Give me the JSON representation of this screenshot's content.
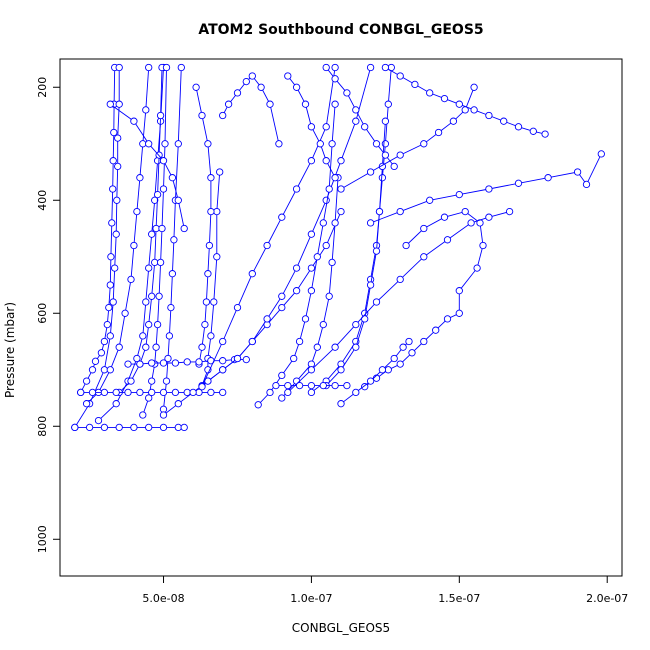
{
  "chart_data": {
    "type": "scatter",
    "title": "ATOM2 Southbound CONBGL_GEOS5",
    "xlabel": "CONBGL_GEOS5",
    "ylabel": "Pressure (mbar)",
    "xlim": [
      1.5e-08,
      2.05e-07
    ],
    "ylim": [
      1065,
      150
    ],
    "y_reversed": true,
    "xticks": [
      5e-08,
      1e-07,
      1.5e-07,
      2e-07
    ],
    "xtick_labels": [
      "5.0e-08",
      "1.0e-07",
      "1.5e-07",
      "2.0e-07"
    ],
    "yticks": [
      200,
      400,
      600,
      800,
      1000
    ],
    "ytick_labels": [
      "200",
      "400",
      "600",
      "800",
      "1000"
    ],
    "color": "#0000ff",
    "marker": "open-circle",
    "line": "connected",
    "grid": false,
    "series": [
      {
        "x": [
          2.2e-08,
          2.4e-08,
          2.6e-08,
          2.7e-08,
          2.9e-08,
          3e-08,
          3.1e-08,
          3.15e-08,
          3.2e-08,
          3.22e-08,
          3.25e-08,
          3.28e-08,
          3.3e-08,
          3.32e-08,
          3.33e-08,
          3.35e-08
        ],
        "y": [
          740,
          720,
          700,
          685,
          670,
          650,
          620,
          590,
          550,
          500,
          440,
          380,
          330,
          280,
          230,
          165
        ]
      },
      {
        "x": [
          2e-08,
          2.5e-08,
          3e-08,
          3.2e-08,
          3.3e-08,
          3.35e-08,
          3.4e-08,
          3.42e-08,
          3.45e-08,
          3.45e-08,
          3.5e-08,
          3.5e-08
        ],
        "y": [
          802,
          760,
          700,
          640,
          580,
          520,
          460,
          400,
          340,
          290,
          230,
          165
        ]
      },
      {
        "x": [
          2.4e-08,
          2.8e-08,
          3.2e-08,
          3.5e-08,
          3.7e-08,
          3.9e-08,
          4e-08,
          4.1e-08,
          4.2e-08,
          4.3e-08,
          4.4e-08,
          4.5e-08
        ],
        "y": [
          760,
          740,
          700,
          660,
          600,
          540,
          480,
          420,
          360,
          300,
          240,
          165
        ]
      },
      {
        "x": [
          2.8e-08,
          3.4e-08,
          3.8e-08,
          4.1e-08,
          4.3e-08,
          4.4e-08,
          4.5e-08,
          4.6e-08,
          4.7e-08,
          4.8e-08,
          4.9e-08,
          5e-08
        ],
        "y": [
          790,
          760,
          720,
          680,
          640,
          580,
          520,
          460,
          400,
          330,
          260,
          165
        ]
      },
      {
        "x": [
          3.5e-08,
          3.9e-08,
          4.2e-08,
          4.4e-08,
          4.5e-08,
          4.6e-08,
          4.7e-08,
          4.75e-08,
          4.8e-08,
          4.85e-08,
          4.9e-08,
          4.95e-08
        ],
        "y": [
          740,
          720,
          690,
          660,
          620,
          570,
          510,
          450,
          390,
          320,
          250,
          165
        ]
      },
      {
        "x": [
          4.3e-08,
          4.5e-08,
          4.6e-08,
          4.7e-08,
          4.75e-08,
          4.8e-08,
          4.85e-08,
          4.9e-08,
          4.95e-08,
          5e-08,
          5.05e-08,
          5.1e-08
        ],
        "y": [
          780,
          750,
          720,
          690,
          660,
          620,
          570,
          510,
          450,
          380,
          300,
          165
        ]
      },
      {
        "x": [
          5e-08,
          5.1e-08,
          5.15e-08,
          5.2e-08,
          5.25e-08,
          5.3e-08,
          5.35e-08,
          5.4e-08,
          5.5e-08,
          5.6e-08
        ],
        "y": [
          770,
          720,
          680,
          640,
          590,
          530,
          470,
          400,
          300,
          165
        ]
      },
      {
        "x": [
          6.3e-08,
          6.5e-08,
          6.5e-08,
          6.6e-08,
          6.7e-08,
          6.8e-08,
          6.8e-08,
          6.9e-08
        ],
        "y": [
          728,
          700,
          680,
          640,
          580,
          500,
          420,
          350
        ]
      },
      {
        "x": [
          6.2e-08,
          6.3e-08,
          6.4e-08,
          6.45e-08,
          6.5e-08,
          6.55e-08,
          6.6e-08,
          6.6e-08,
          6.5e-08,
          6.3e-08,
          6.1e-08
        ],
        "y": [
          690,
          660,
          620,
          580,
          530,
          480,
          420,
          360,
          300,
          250,
          200
        ]
      },
      {
        "x": [
          3.2e-08,
          4e-08,
          4.5e-08,
          5e-08,
          5.3e-08,
          5.5e-08,
          5.7e-08
        ],
        "y": [
          230,
          260,
          300,
          330,
          360,
          400,
          450
        ]
      },
      {
        "x": [
          2e-08,
          2.5e-08,
          3e-08,
          3.5e-08,
          4e-08,
          4.5e-08,
          5e-08,
          5.5e-08,
          5.7e-08
        ],
        "y": [
          802,
          802,
          802,
          802,
          802,
          802,
          802,
          802,
          802
        ]
      },
      {
        "x": [
          2.2e-08,
          2.6e-08,
          3e-08,
          3.4e-08,
          3.8e-08,
          4.2e-08,
          4.6e-08,
          5e-08,
          5.4e-08,
          5.8e-08,
          6.2e-08,
          6.6e-08,
          7e-08
        ],
        "y": [
          740,
          740,
          740,
          740,
          740,
          740,
          740,
          740,
          740,
          740,
          740,
          740,
          740
        ]
      },
      {
        "x": [
          3.8e-08,
          4.2e-08,
          4.6e-08,
          5e-08,
          5.4e-08,
          5.8e-08,
          6.2e-08,
          6.6e-08,
          7e-08,
          7.4e-08,
          7.8e-08
        ],
        "y": [
          690,
          690,
          688,
          688,
          688,
          686,
          686,
          684,
          684,
          682,
          682
        ]
      },
      {
        "x": [
          5e-08,
          5.5e-08,
          6e-08,
          6.5e-08,
          7e-08,
          7.5e-08,
          8e-08,
          8.5e-08,
          9e-08,
          9.5e-08,
          1e-07,
          1.05e-07,
          1.1e-07
        ],
        "y": [
          780,
          760,
          740,
          720,
          700,
          680,
          650,
          620,
          590,
          560,
          520,
          480,
          420
        ]
      },
      {
        "x": [
          6.5e-08,
          7e-08,
          7.5e-08,
          8e-08,
          8.5e-08,
          9e-08,
          9.5e-08,
          1e-07,
          1.05e-07,
          1.1e-07,
          1.15e-07,
          1.2e-07
        ],
        "y": [
          720,
          700,
          680,
          650,
          610,
          570,
          520,
          460,
          400,
          330,
          260,
          165
        ]
      },
      {
        "x": [
          8.2e-08,
          8.6e-08,
          9e-08,
          9.4e-08,
          9.6e-08,
          9.8e-08,
          1e-07,
          1.02e-07,
          1.04e-07,
          1.06e-07,
          1.07e-07,
          1.08e-07
        ],
        "y": [
          762,
          740,
          710,
          680,
          650,
          610,
          560,
          500,
          440,
          380,
          300,
          230
        ]
      },
      {
        "x": [
          9e-08,
          9.5e-08,
          1e-07,
          1.02e-07,
          1.04e-07,
          1.06e-07,
          1.07e-07,
          1.08e-07,
          1.09e-07
        ],
        "y": [
          750,
          720,
          690,
          660,
          620,
          570,
          510,
          440,
          360
        ]
      },
      {
        "x": [
          1e-07,
          1.05e-07,
          1.1e-07,
          1.15e-07,
          1.18e-07,
          1.2e-07,
          1.22e-07,
          1.23e-07,
          1.24e-07,
          1.25e-07,
          1.26e-07,
          1.27e-07
        ],
        "y": [
          740,
          720,
          690,
          650,
          600,
          540,
          480,
          420,
          360,
          300,
          230,
          165
        ]
      },
      {
        "x": [
          1.05e-07,
          1.1e-07,
          1.15e-07,
          1.18e-07,
          1.2e-07,
          1.22e-07,
          1.23e-07,
          1.24e-07,
          1.25e-07
        ],
        "y": [
          728,
          700,
          660,
          610,
          550,
          490,
          420,
          340,
          260
        ]
      },
      {
        "x": [
          1.18e-07,
          1.22e-07,
          1.26e-07,
          1.3e-07,
          1.34e-07,
          1.38e-07,
          1.42e-07,
          1.46e-07,
          1.5e-07,
          1.5e-07,
          1.56e-07,
          1.58e-07,
          1.57e-07,
          1.52e-07,
          1.45e-07,
          1.38e-07,
          1.32e-07
        ],
        "y": [
          730,
          715,
          700,
          690,
          670,
          650,
          630,
          610,
          600,
          560,
          520,
          480,
          440,
          420,
          430,
          450,
          480
        ]
      },
      {
        "x": [
          9.2e-08,
          1e-07,
          1.08e-07,
          1.15e-07,
          1.22e-07,
          1.3e-07,
          1.38e-07,
          1.46e-07,
          1.54e-07,
          1.6e-07,
          1.67e-07
        ],
        "y": [
          740,
          700,
          660,
          620,
          580,
          540,
          500,
          470,
          440,
          430,
          420
        ]
      },
      {
        "x": [
          1.2e-07,
          1.3e-07,
          1.4e-07,
          1.5e-07,
          1.6e-07,
          1.7e-07,
          1.8e-07,
          1.9e-07,
          1.93e-07,
          1.98e-07
        ],
        "y": [
          440,
          420,
          400,
          390,
          380,
          370,
          360,
          350,
          372,
          318
        ]
      },
      {
        "x": [
          1.1e-07,
          1.2e-07,
          1.3e-07,
          1.38e-07,
          1.43e-07,
          1.48e-07,
          1.52e-07,
          1.55e-07
        ],
        "y": [
          380,
          350,
          320,
          300,
          280,
          260,
          240,
          200
        ]
      },
      {
        "x": [
          1.25e-07,
          1.3e-07,
          1.35e-07,
          1.4e-07,
          1.45e-07,
          1.5e-07,
          1.55e-07,
          1.6e-07,
          1.65e-07,
          1.7e-07,
          1.75e-07,
          1.79e-07
        ],
        "y": [
          165,
          180,
          195,
          210,
          220,
          230,
          240,
          250,
          260,
          270,
          278,
          283
        ]
      },
      {
        "x": [
          6.3e-08,
          7e-08,
          7.5e-08,
          8e-08,
          8.5e-08,
          9e-08,
          9.5e-08,
          1e-07,
          1.05e-07,
          1.08e-07
        ],
        "y": [
          730,
          650,
          590,
          530,
          480,
          430,
          380,
          330,
          270,
          165
        ]
      },
      {
        "x": [
          7e-08,
          7.2e-08,
          7.5e-08,
          7.8e-08,
          8e-08,
          8.3e-08,
          8.6e-08,
          8.9e-08
        ],
        "y": [
          250,
          230,
          210,
          190,
          180,
          200,
          230,
          300
        ]
      },
      {
        "x": [
          9.2e-08,
          9.5e-08,
          9.8e-08,
          1e-07,
          1.03e-07,
          1.05e-07,
          1.08e-07
        ],
        "y": [
          180,
          200,
          230,
          270,
          300,
          330,
          360
        ]
      },
      {
        "x": [
          1.05e-07,
          1.08e-07,
          1.12e-07,
          1.15e-07,
          1.18e-07,
          1.22e-07,
          1.25e-07,
          1.28e-07
        ],
        "y": [
          165,
          185,
          210,
          240,
          270,
          300,
          320,
          340
        ]
      },
      {
        "x": [
          1.1e-07,
          1.15e-07,
          1.2e-07,
          1.24e-07,
          1.28e-07,
          1.31e-07,
          1.33e-07
        ],
        "y": [
          760,
          740,
          720,
          700,
          680,
          660,
          650
        ]
      },
      {
        "x": [
          8.8e-08,
          9.2e-08,
          9.6e-08,
          1e-07,
          1.04e-07,
          1.08e-07,
          1.12e-07
        ],
        "y": [
          728,
          728,
          728,
          728,
          728,
          728,
          728
        ]
      }
    ]
  }
}
